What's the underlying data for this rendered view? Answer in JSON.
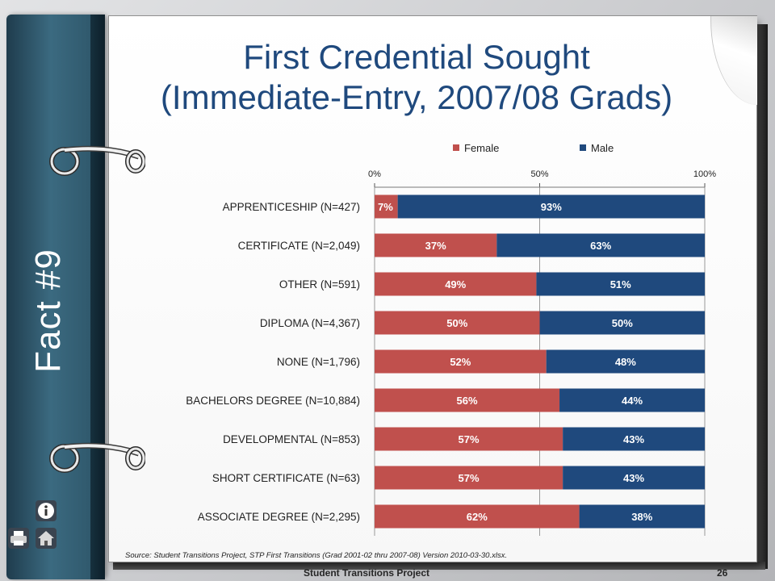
{
  "title": {
    "line1": "First Credential Sought",
    "line2": "(Immediate-Entry, 2007/08 Grads)"
  },
  "side_label": "Fact #9",
  "source": "Source:  Student Transitions Project, STP First Transitions (Grad 2001-02 thru 2007-08) Version 2010-03-30.xlsx.",
  "footer": {
    "label": "Student Transitions Project",
    "page_number": "26"
  },
  "icons": [
    "info-icon",
    "print-icon",
    "home-icon"
  ],
  "colors": {
    "female": "#c0504d",
    "male": "#1f497d",
    "title": "#1f497d"
  },
  "chart_data": {
    "type": "bar",
    "orientation": "horizontal",
    "stacked": "percent",
    "categories": [
      "APPRENTICESHIP (N=427)",
      "CERTIFICATE (N=2,049)",
      "OTHER (N=591)",
      "DIPLOMA (N=4,367)",
      "NONE (N=1,796)",
      "BACHELORS DEGREE (N=10,884)",
      "DEVELOPMENTAL (N=853)",
      "SHORT CERTIFICATE (N=63)",
      "ASSOCIATE DEGREE (N=2,295)"
    ],
    "series": [
      {
        "name": "Female",
        "values": [
          7,
          37,
          49,
          50,
          52,
          56,
          57,
          57,
          62
        ],
        "labels": [
          "7%",
          "37%",
          "49%",
          "50%",
          "52%",
          "56%",
          "57%",
          "57%",
          "62%"
        ]
      },
      {
        "name": "Male",
        "values": [
          93,
          63,
          51,
          50,
          48,
          44,
          43,
          43,
          38
        ],
        "labels": [
          "93%",
          "63%",
          "51%",
          "50%",
          "48%",
          "44%",
          "43%",
          "43%",
          "38%"
        ]
      }
    ],
    "xlim": [
      0,
      100
    ],
    "xticks": [
      "0%",
      "50%",
      "100%"
    ],
    "axis_position": "top",
    "grid": true,
    "legend": "top"
  }
}
